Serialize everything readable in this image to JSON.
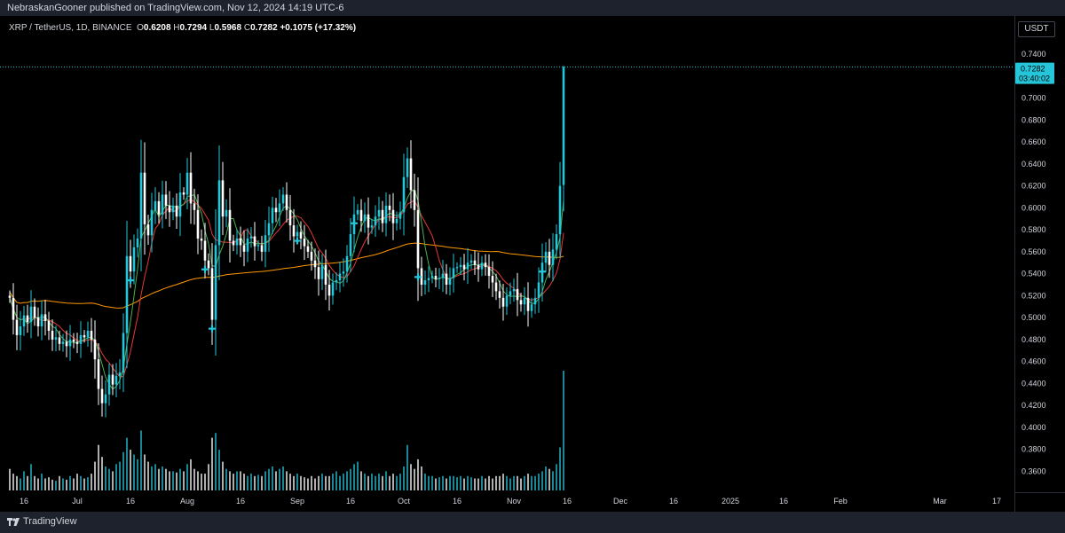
{
  "header": {
    "published_text": "NebraskanGooner published on TradingView.com, Nov 12, 2024 14:19 UTC-6"
  },
  "legend": {
    "symbol": "XRP / TetherUS, 1D, BINANCE",
    "open_label": "O",
    "open": "0.6208",
    "high_label": "H",
    "high": "0.7294",
    "low_label": "L",
    "low": "0.5968",
    "close_label": "C",
    "close": "0.7282",
    "change": "+0.1075 (+17.32%)"
  },
  "price_axis": {
    "currency": "USDT",
    "last_price": "0.7282",
    "countdown": "03:40:02"
  },
  "footer": {
    "brand": "TradingView"
  },
  "colors": {
    "up": "#26c6da",
    "down": "#ffffff",
    "ma_fast": "#4caf50",
    "ma_mid": "#e53935",
    "ma_slow": "#ff9800",
    "badge": "#26c6da",
    "marker": "#26c6da"
  },
  "chart_data": {
    "type": "candlestick",
    "title": "",
    "xlabel": "",
    "ylabel": "",
    "ylim": [
      0.35,
      0.75
    ],
    "price_ticks": [
      0.74,
      0.72,
      0.7,
      0.68,
      0.66,
      0.64,
      0.62,
      0.6,
      0.58,
      0.56,
      0.54,
      0.52,
      0.5,
      0.48,
      0.46,
      0.44,
      0.42,
      0.4,
      0.38,
      0.36
    ],
    "price_tick_labels": [
      "0.7400",
      "",
      "0.7000",
      "0.6800",
      "0.6600",
      "0.6400",
      "0.6200",
      "0.6000",
      "0.5800",
      "0.5600",
      "0.5400",
      "0.5200",
      "0.5000",
      "0.4800",
      "0.4600",
      "0.4400",
      "0.4200",
      "0.4000",
      "0.3800",
      "0.3600"
    ],
    "time_ticks": [
      {
        "label": "16",
        "index": 4
      },
      {
        "label": "Jul",
        "index": 19
      },
      {
        "label": "16",
        "index": 34
      },
      {
        "label": "Aug",
        "index": 50
      },
      {
        "label": "16",
        "index": 65
      },
      {
        "label": "Sep",
        "index": 81
      },
      {
        "label": "16",
        "index": 96
      },
      {
        "label": "Oct",
        "index": 111
      },
      {
        "label": "16",
        "index": 126
      },
      {
        "label": "Nov",
        "index": 142
      },
      {
        "label": "16",
        "index": 157
      },
      {
        "label": "Dec",
        "index": 172
      },
      {
        "label": "16",
        "index": 187
      },
      {
        "label": "2025",
        "index": 203
      },
      {
        "label": "16",
        "index": 218
      },
      {
        "label": "Feb",
        "index": 234
      },
      {
        "label": "Mar",
        "index": 262
      },
      {
        "label": "17",
        "index": 278
      }
    ],
    "close": [
      0.518,
      0.498,
      0.484,
      0.492,
      0.502,
      0.496,
      0.51,
      0.5,
      0.492,
      0.503,
      0.497,
      0.488,
      0.48,
      0.482,
      0.476,
      0.478,
      0.474,
      0.48,
      0.478,
      0.476,
      0.484,
      0.482,
      0.488,
      0.48,
      0.462,
      0.435,
      0.422,
      0.43,
      0.448,
      0.439,
      0.447,
      0.45,
      0.486,
      0.556,
      0.542,
      0.564,
      0.572,
      0.632,
      0.585,
      0.575,
      0.598,
      0.606,
      0.594,
      0.612,
      0.602,
      0.596,
      0.602,
      0.592,
      0.614,
      0.612,
      0.632,
      0.604,
      0.598,
      0.572,
      0.57,
      0.552,
      0.545,
      0.498,
      0.566,
      0.625,
      0.592,
      0.598,
      0.57,
      0.566,
      0.572,
      0.566,
      0.56,
      0.572,
      0.574,
      0.565,
      0.566,
      0.56,
      0.575,
      0.586,
      0.6,
      0.596,
      0.604,
      0.612,
      0.598,
      0.584,
      0.574,
      0.578,
      0.572,
      0.565,
      0.56,
      0.552,
      0.546,
      0.535,
      0.548,
      0.53,
      0.52,
      0.532,
      0.534,
      0.54,
      0.542,
      0.556,
      0.576,
      0.594,
      0.598,
      0.588,
      0.594,
      0.582,
      0.584,
      0.592,
      0.598,
      0.586,
      0.602,
      0.598,
      0.586,
      0.59,
      0.596,
      0.628,
      0.645,
      0.616,
      0.598,
      0.545,
      0.53,
      0.534,
      0.536,
      0.538,
      0.535,
      0.536,
      0.54,
      0.53,
      0.536,
      0.545,
      0.546,
      0.548,
      0.544,
      0.55,
      0.552,
      0.548,
      0.544,
      0.55,
      0.546,
      0.538,
      0.532,
      0.524,
      0.518,
      0.51,
      0.52,
      0.524,
      0.526,
      0.516,
      0.512,
      0.518,
      0.506,
      0.512,
      0.518,
      0.532,
      0.55,
      0.56,
      0.548,
      0.562,
      0.576,
      0.62,
      0.7282
    ],
    "volume_scale_note": "",
    "volume": [
      18,
      14,
      12,
      10,
      16,
      12,
      22,
      12,
      10,
      14,
      10,
      11,
      9,
      8,
      12,
      10,
      9,
      12,
      10,
      14,
      12,
      10,
      11,
      14,
      24,
      38,
      28,
      20,
      18,
      16,
      22,
      24,
      32,
      44,
      34,
      30,
      26,
      50,
      30,
      24,
      20,
      22,
      18,
      20,
      18,
      16,
      16,
      15,
      18,
      16,
      22,
      26,
      18,
      16,
      14,
      14,
      22,
      44,
      48,
      34,
      24,
      18,
      16,
      14,
      16,
      16,
      14,
      12,
      14,
      12,
      13,
      12,
      16,
      18,
      20,
      16,
      18,
      20,
      16,
      14,
      12,
      14,
      12,
      11,
      10,
      12,
      10,
      12,
      14,
      12,
      12,
      14,
      16,
      12,
      14,
      16,
      18,
      22,
      24,
      16,
      14,
      12,
      14,
      12,
      14,
      12,
      16,
      12,
      14,
      12,
      14,
      20,
      38,
      22,
      18,
      26,
      20,
      14,
      12,
      12,
      10,
      11,
      12,
      10,
      12,
      12,
      11,
      12,
      10,
      12,
      11,
      10,
      10,
      12,
      10,
      12,
      10,
      12,
      12,
      14,
      12,
      10,
      12,
      12,
      10,
      12,
      14,
      12,
      12,
      14,
      16,
      20,
      18,
      16,
      22,
      36,
      100
    ]
  }
}
